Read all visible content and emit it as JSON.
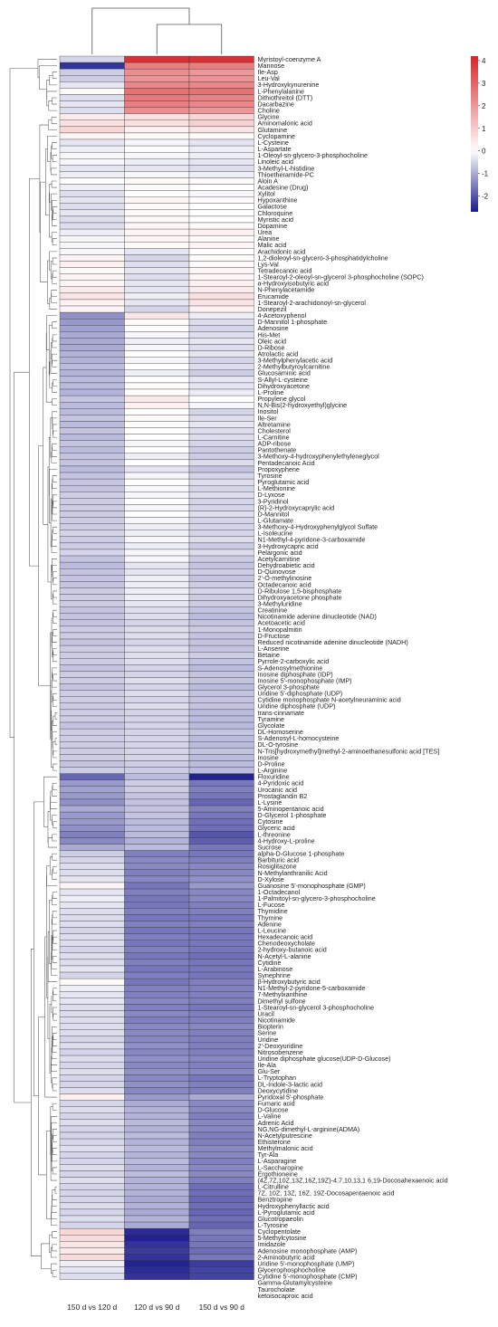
{
  "chart_data": {
    "type": "heatmap",
    "columns": [
      "150 d vs 120 d",
      "120 d vs 90 d",
      "150 d vs 90 d"
    ],
    "rows": [
      "Myristoyl-coenzyme A",
      "Mannose",
      "Ile-Asp",
      "Leu-Val",
      "3-Hydroxykynurenine",
      "L-Phenylalanine",
      "Dithiothreitol (DTT)",
      "Dacarbazine",
      "Choline",
      "Glycine",
      "Aminomalonic acid",
      "Glutamine",
      "Cyclopamine",
      "L-Cysteine",
      "L-Aspartate",
      "1-Oleoyl-sn-glycero-3-phosphocholine",
      "Linoleic acid",
      "3-Methyl-L-histidine",
      "Thioetheramide-PC",
      "Aloin A",
      "Acadesine (Drug)",
      "Xylitol",
      "Hypoxanthine",
      "Galactose",
      "Chloroquine",
      "Myristic acid",
      "Dopamine",
      "Urea",
      "Alanine",
      "Malic acid",
      "Arachidonic acid",
      "1,2-dioleoyl-sn-glycero-3-phosphatidylcholine",
      "Lys-Val",
      "Tetradecanoic acid",
      "1-Stearoyl-2-oleoyl-sn-glycerol 3-phosphocholine (SOPC)",
      "α-Hydroxyisobutyric acid",
      "N-Phenylacetamide",
      "Erucamide",
      "1-Stearoyl-2-arachidonoyl-sn-glycerol",
      "Donepezil",
      "4-Acetoxyphenol",
      "D-Mannitol 1-phosphate",
      "Adenosine",
      "His-Met",
      "Oleic acid",
      "D-Ribose",
      "Atrolactic acid",
      "3-Methylphenylacetic acid",
      "2-Methylbutyroylcarnitine",
      "Glucosaminic acid",
      "S-Allyl-L-cysteine",
      "Dihydroxyacetone",
      "L-Proline",
      "Propylene glycol",
      "N,N-Bis(2-hydroxyethyl)glycine",
      "Inositol",
      "Ile-Ser",
      "Altretamine",
      "Cholesterol",
      "L-Carnitine",
      "ADP-ribose",
      "Pantothenate",
      "3-Methoxy-4-hydroxyphenylethyleneglycol",
      "Pentadecanoic Acid",
      "Propoxyphene",
      "Tyrosine",
      "Pyroglutamic acid",
      "L-Methionine",
      "D-Lyxose",
      "3-Pyridinol",
      "(R)-2-Hydroxycaprylic acid",
      "D-Mannitol",
      "L-Glutamate",
      "3-Methoxy-4-Hydroxyphenylglycol Sulfate",
      "L-Isoleucine",
      "N1-Methyl-4-pyridone-3-carboxamide",
      "3-Hydroxycapric acid",
      "Pelargonic acid",
      "Acetylcarnitine",
      "Dehydroabietic acid",
      "D-Quinovose",
      "2'-O-methylinosine",
      "Octadecanoic acid",
      "D-Ribulose 1,5-bisphosphate",
      "Dihydroxyacetone phosphate",
      "3-Methyluridine",
      "Creatinine",
      "Nicotinamide adenine dinucleotide (NAD)",
      "Acetoacetic acid",
      "1-Monopalmitin",
      "D-Fructose",
      "Reduced nicotinamide adenine dinucleotide (NADH)",
      "L-Anserine",
      "Betaine",
      "Pyrrole-2-carboxylic acid",
      "S-Adenosylmethionine",
      "Inosine diphosphate (IDP)",
      "Inosine 5'-monophosphate (IMP)",
      "Glycerol 3-phosphate",
      "Uridine 5'-diphosphate (UDP)",
      "Cytidine monophosphate N-acetylneuraminic acid",
      "Uridine diphosphate (UDP)",
      "trans-cinnamate",
      "Tyramine",
      "Glycolate",
      "DL-Homoserine",
      "S-Adenosyl-L-homocysteine",
      "DL-O-tyrosine",
      "N-Tris[hydroxymethyl]methyl-2-aminoethanesulfonic acid  [TES]",
      "Inosine",
      "D-Proline",
      "L-Arginine",
      "Floxuridine",
      "4-Pyridoxic acid",
      "Urocanic acid",
      "Prostaglandin B2",
      "L-Lysine",
      "5-Aminopentanoic acid",
      "D-Glycerol 1-phosphate",
      "Cytosine",
      "Glyceric acid",
      "L-threonine",
      "4-Hydroxy-L-proline",
      "Sucrose",
      "alpha-D-Glucose 1-phosphate",
      "Barbituric acid",
      "Rosiglitazone",
      "N-Methylanthranilic Acid",
      "D-Xylose",
      "Guanosine 5'-monophosphate (GMP)",
      "1-Octadecanol",
      "1-Palmitoyl-sn-glycero-3-phosphocholine",
      "L-Fucose",
      "Thymidine",
      "Thymine",
      "Adenine",
      "L-Leucine",
      "Hexadecanoic acid",
      "Chenodeoxycholate",
      "2-hydroxy-butanoic acid",
      "N-Acetyl-L-alanine",
      "Cytidine",
      "L-Arabinose",
      "Synephrine",
      "β-Hydroxybutyric acid",
      "N1-Methyl-2-pyridone-5-carboxamide",
      "7-Methylxanthine",
      "Dimethyl sulfone",
      "1-Stearoyl-sn-glycerol 3-phosphocholine",
      "Uracil",
      "Nicotinamide",
      "Biopterin",
      "Serine",
      "Uridine",
      "2'-Deoxyuridine",
      "Nitrosobenzene",
      "Uridine diphosphate glucose(UDP-D-Glucose)",
      "Ile-Ala",
      "Glu-Ser",
      "L-Tryptophan",
      "DL-Indole-3-lactic acid",
      "Deoxycytidine",
      "Pyridoxal 5'-phosphate",
      "Fumaric acid",
      "D-Glucose",
      "L-Valine",
      "Adrenic Acid",
      "NG,NG-dimethyl-L-arginine(ADMA)",
      "N-Acetylputrescine",
      "Ethisterone",
      "Methylmalonic acid",
      "Tyr-Ala",
      "L-Asparagine",
      "L-Saccharopine",
      "Ergothioneine",
      "(4Z,7Z,10Z,13Z,16Z,19Z)-4,7,10,13,1 6,19-Docosahexaenoic acid",
      "L-Citrulline",
      "7Z, 10Z, 13Z, 16Z, 19Z-Docosapentaenoic acid",
      "Benztropine",
      "Hydroxyphenyllactic acid",
      "L-Pyroglutamic acid",
      "Glucotropaeolin",
      "L-Tyrosine",
      "Cyclopentolate",
      "5-Methylcytosine",
      "Imidazole",
      "Adenosine monophosphate (AMP)",
      "2-Aminobutyric acid",
      "Uridine 5'-monophosphate (UMP)",
      "Glycerophosphocholine",
      "Cytidine 5'-monophosphate (CMP)",
      "Gamma-Glutamylcysteine",
      "Taurocholate",
      "ketoisocaproic acid"
    ],
    "values": [
      [
        -0.5,
        4,
        4
      ],
      [
        -2.4,
        2.5,
        2.5
      ],
      [
        -0.6,
        2.2,
        2.0
      ],
      [
        -0.6,
        2.1,
        2.1
      ],
      [
        -0.3,
        2.3,
        2.3
      ],
      [
        0.1,
        2.7,
        2.7
      ],
      [
        -0.4,
        2.6,
        2.4
      ],
      [
        -0.3,
        2.5,
        2.3
      ],
      [
        -0.4,
        2.2,
        2.0
      ],
      [
        0.4,
        0.6,
        0.8
      ],
      [
        0.6,
        0.6,
        0.9
      ],
      [
        0.8,
        0.3,
        0.5
      ],
      [
        0.2,
        0.1,
        0.1
      ],
      [
        -0.3,
        -0.1,
        -0.3
      ],
      [
        -0.2,
        0.0,
        -0.2
      ],
      [
        -0.1,
        -0.1,
        -0.2
      ],
      [
        -0.1,
        -0.2,
        -0.3
      ],
      [
        -0.3,
        -0.3,
        -0.4
      ],
      [
        -0.2,
        -0.1,
        -0.2
      ],
      [
        0.0,
        0.1,
        0.1
      ],
      [
        -0.2,
        0.1,
        0.0
      ],
      [
        -0.4,
        0.0,
        -0.1
      ],
      [
        -0.3,
        0.2,
        0.1
      ],
      [
        -0.4,
        0.1,
        0.0
      ],
      [
        -0.3,
        0.1,
        0.0
      ],
      [
        -0.4,
        0.1,
        0.0
      ],
      [
        -0.4,
        0.2,
        0.1
      ],
      [
        -0.2,
        0.2,
        0.3
      ],
      [
        -0.1,
        0.2,
        0.1
      ],
      [
        -0.1,
        0.1,
        0.2
      ],
      [
        -0.1,
        -0.3,
        0.0
      ],
      [
        0.2,
        -0.5,
        0.1
      ],
      [
        0.3,
        -0.4,
        0.1
      ],
      [
        0.1,
        -0.3,
        0.2
      ],
      [
        0.2,
        -0.4,
        0.2
      ],
      [
        0.2,
        -0.3,
        0.3
      ],
      [
        0.4,
        -0.3,
        0.4
      ],
      [
        0.5,
        -0.2,
        0.6
      ],
      [
        0.3,
        -0.3,
        0.5
      ],
      [
        0.2,
        -0.5,
        0.3
      ],
      [
        -1.3,
        0.5,
        -0.2
      ],
      [
        -1.2,
        0.1,
        -0.4
      ],
      [
        -1.1,
        0.0,
        -0.5
      ],
      [
        -1.0,
        -0.1,
        -0.4
      ],
      [
        -1.0,
        -0.2,
        -0.3
      ],
      [
        -1.0,
        -0.1,
        -0.4
      ],
      [
        -0.9,
        0.0,
        -0.3
      ],
      [
        -0.9,
        -0.1,
        -0.5
      ],
      [
        -0.8,
        0.0,
        -0.4
      ],
      [
        -0.9,
        -0.2,
        -0.6
      ],
      [
        -0.8,
        0.0,
        -0.3
      ],
      [
        -0.8,
        0.1,
        -0.3
      ],
      [
        -0.9,
        0.0,
        -0.2
      ],
      [
        -0.7,
        0.4,
        0.0
      ],
      [
        -0.8,
        0.3,
        -0.1
      ],
      [
        -0.8,
        0.0,
        -0.5
      ],
      [
        -0.7,
        0.1,
        -0.4
      ],
      [
        -0.8,
        0.0,
        -0.3
      ],
      [
        -0.7,
        0.0,
        -0.4
      ],
      [
        -0.8,
        0.0,
        -0.4
      ],
      [
        -0.7,
        -0.1,
        -0.5
      ],
      [
        -0.8,
        0.0,
        -0.6
      ],
      [
        -0.7,
        -0.2,
        -0.6
      ],
      [
        -0.7,
        0.0,
        -0.4
      ],
      [
        -0.8,
        -0.3,
        -0.7
      ],
      [
        -0.7,
        -0.1,
        -0.5
      ],
      [
        -0.7,
        0.0,
        -0.4
      ],
      [
        -0.7,
        -0.1,
        -0.5
      ],
      [
        -0.6,
        -0.1,
        -0.4
      ],
      [
        -0.6,
        0.0,
        -0.5
      ],
      [
        -0.6,
        -0.1,
        -0.5
      ],
      [
        -0.6,
        0.0,
        -0.4
      ],
      [
        -0.6,
        -0.1,
        -0.5
      ],
      [
        -0.6,
        -0.2,
        -0.5
      ],
      [
        -0.5,
        -0.2,
        -0.5
      ],
      [
        -0.6,
        -0.1,
        -0.4
      ],
      [
        -0.6,
        -0.2,
        -0.6
      ],
      [
        -0.5,
        -0.1,
        -0.4
      ],
      [
        -0.7,
        -0.1,
        -0.6
      ],
      [
        -0.8,
        -0.3,
        -0.7
      ],
      [
        -0.7,
        -0.3,
        -0.6
      ],
      [
        -0.7,
        -0.2,
        -0.7
      ],
      [
        -0.7,
        -0.2,
        -0.6
      ],
      [
        -0.6,
        -0.2,
        -0.5
      ],
      [
        -0.6,
        -0.2,
        -0.6
      ],
      [
        -0.6,
        -0.3,
        -0.6
      ],
      [
        -0.7,
        -0.4,
        -0.7
      ],
      [
        -0.7,
        -0.4,
        -0.8
      ],
      [
        -0.7,
        -0.5,
        -0.7
      ],
      [
        -0.6,
        -0.4,
        -0.6
      ],
      [
        -0.6,
        -0.4,
        -0.7
      ],
      [
        -0.7,
        -0.5,
        -0.7
      ],
      [
        -0.6,
        -0.4,
        -0.7
      ],
      [
        -0.6,
        -0.4,
        -0.6
      ],
      [
        -0.6,
        -0.4,
        -0.7
      ],
      [
        -0.7,
        -0.5,
        -0.8
      ],
      [
        -0.6,
        -0.5,
        -0.7
      ],
      [
        -0.6,
        -0.4,
        -0.7
      ],
      [
        -0.7,
        -0.5,
        -0.8
      ],
      [
        -0.6,
        -0.4,
        -0.7
      ],
      [
        -0.6,
        -0.5,
        -0.7
      ],
      [
        -0.6,
        -0.4,
        -0.7
      ],
      [
        -0.6,
        -0.5,
        -0.8
      ],
      [
        -0.6,
        -0.5,
        -0.8
      ],
      [
        -0.7,
        -0.5,
        -0.8
      ],
      [
        -0.6,
        -0.5,
        -0.7
      ],
      [
        -0.6,
        -0.5,
        -0.8
      ],
      [
        -0.6,
        -0.5,
        -0.8
      ],
      [
        -0.6,
        -0.5,
        -0.7
      ],
      [
        -0.6,
        -0.5,
        -0.8
      ],
      [
        -0.7,
        -0.6,
        -0.8
      ],
      [
        -0.6,
        -0.6,
        -0.8
      ],
      [
        -1.8,
        -0.8,
        -2.6
      ],
      [
        -1.2,
        -0.6,
        -1.6
      ],
      [
        -1.1,
        -0.6,
        -1.5
      ],
      [
        -1.2,
        -0.7,
        -1.6
      ],
      [
        -1.3,
        -0.7,
        -1.8
      ],
      [
        -1.0,
        -0.7,
        -1.5
      ],
      [
        -1.2,
        -0.7,
        -1.6
      ],
      [
        -1.2,
        -0.8,
        -1.7
      ],
      [
        -1.3,
        -0.8,
        -1.7
      ],
      [
        -1.5,
        -0.8,
        -2.0
      ],
      [
        -1.4,
        -0.9,
        -1.9
      ],
      [
        -1.0,
        -0.8,
        -1.6
      ],
      [
        -0.6,
        -1.5,
        -1.6
      ],
      [
        -0.5,
        -1.4,
        -1.5
      ],
      [
        -0.4,
        -1.4,
        -1.4
      ],
      [
        -0.4,
        -1.5,
        -1.4
      ],
      [
        -0.3,
        -1.4,
        -1.3
      ],
      [
        0.2,
        -1.6,
        -1.2
      ],
      [
        -0.3,
        -1.5,
        -1.4
      ],
      [
        -0.2,
        -1.6,
        -1.4
      ],
      [
        -0.3,
        -1.6,
        -1.5
      ],
      [
        -0.4,
        -1.5,
        -1.5
      ],
      [
        -0.4,
        -1.6,
        -1.6
      ],
      [
        -0.4,
        -1.5,
        -1.5
      ],
      [
        -0.5,
        -1.6,
        -1.6
      ],
      [
        -0.4,
        -1.5,
        -1.6
      ],
      [
        -0.4,
        -1.6,
        -1.6
      ],
      [
        -0.5,
        -1.5,
        -1.6
      ],
      [
        -0.4,
        -1.6,
        -1.7
      ],
      [
        -0.4,
        -1.5,
        -1.6
      ],
      [
        -0.3,
        -1.6,
        -1.6
      ],
      [
        -0.5,
        -1.5,
        -1.6
      ],
      [
        0.1,
        -1.6,
        -1.5
      ],
      [
        -0.2,
        -1.5,
        -1.5
      ],
      [
        -0.3,
        -1.5,
        -1.5
      ],
      [
        -0.3,
        -1.4,
        -1.5
      ],
      [
        -0.4,
        -1.5,
        -1.6
      ],
      [
        -0.4,
        -1.4,
        -1.5
      ],
      [
        -0.4,
        -1.5,
        -1.5
      ],
      [
        -0.4,
        -1.4,
        -1.4
      ],
      [
        -0.4,
        -1.4,
        -1.5
      ],
      [
        -0.5,
        -1.4,
        -1.5
      ],
      [
        -0.4,
        -1.3,
        -1.5
      ],
      [
        -0.5,
        -1.4,
        -1.5
      ],
      [
        -0.4,
        -1.3,
        -1.4
      ],
      [
        -0.5,
        -1.4,
        -1.5
      ],
      [
        -0.4,
        -1.3,
        -1.4
      ],
      [
        -0.5,
        -1.4,
        -1.6
      ],
      [
        -0.5,
        -1.3,
        -1.5
      ],
      [
        -0.4,
        -1.4,
        -1.5
      ],
      [
        0.3,
        -1.2,
        -1.0
      ],
      [
        -0.5,
        -1.0,
        -1.4
      ],
      [
        -0.4,
        -0.9,
        -1.4
      ],
      [
        -0.5,
        -0.9,
        -1.5
      ],
      [
        -0.4,
        -0.8,
        -1.4
      ],
      [
        -0.5,
        -0.9,
        -1.4
      ],
      [
        -0.5,
        -0.8,
        -1.5
      ],
      [
        -0.5,
        -0.9,
        -1.5
      ],
      [
        -0.4,
        -0.8,
        -1.4
      ],
      [
        -0.5,
        -0.9,
        -1.4
      ],
      [
        -0.5,
        -0.8,
        -1.5
      ],
      [
        -0.4,
        -0.9,
        -1.4
      ],
      [
        -0.5,
        -0.8,
        -1.4
      ],
      [
        -0.4,
        -0.9,
        -1.5
      ],
      [
        -0.5,
        -0.9,
        -1.7
      ],
      [
        -0.5,
        -0.9,
        -1.7
      ],
      [
        -0.5,
        -1.0,
        -1.8
      ],
      [
        -0.4,
        -0.9,
        -1.7
      ],
      [
        -0.5,
        -1.0,
        -1.8
      ],
      [
        -0.4,
        -0.9,
        -1.7
      ],
      [
        -0.5,
        -1.0,
        -1.8
      ],
      [
        0.8,
        -2.5,
        -1.5
      ],
      [
        0.7,
        -2.6,
        -1.6
      ],
      [
        0.5,
        -2.4,
        -1.6
      ],
      [
        0.4,
        -2.3,
        -1.7
      ],
      [
        0.7,
        -2.4,
        -1.6
      ],
      [
        -0.2,
        -2.6,
        -2.3
      ],
      [
        -0.3,
        -2.5,
        -2.2
      ],
      [
        -0.4,
        -2.4,
        -2.2
      ]
    ],
    "col_order": [
      0,
      1,
      2
    ],
    "col_tree": "(150 d vs 120 d, (120 d vs 90 d, 150 d vs 90 d))",
    "colorbar": {
      "ticks": [
        4,
        3,
        2,
        1,
        0,
        -1,
        -2
      ],
      "min": -2.7,
      "max": 4.2
    },
    "colors": {
      "low": "#1a1a8c",
      "mid": "#ffffff",
      "high": "#d7262a",
      "line": "#333333",
      "dendro": "#555555"
    }
  }
}
